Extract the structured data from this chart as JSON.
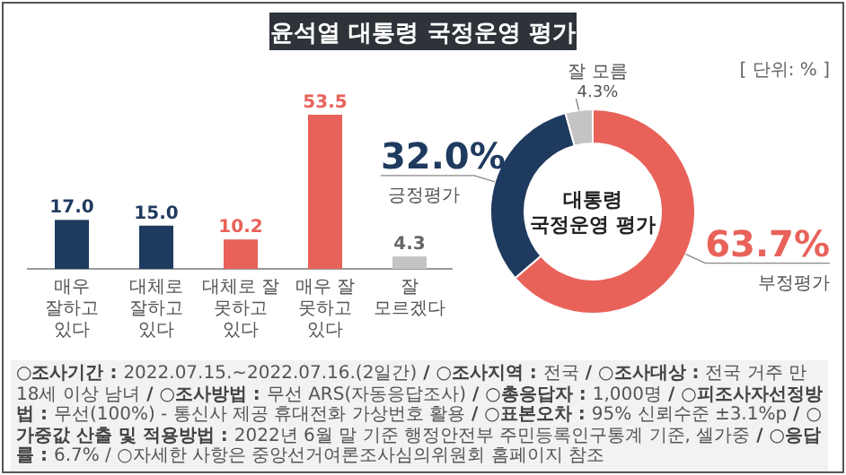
{
  "chart_data": [
    {
      "type": "bar",
      "title": "윤석열 대통령 국정운영 평가",
      "categories": [
        "매우 잘하고 있다",
        "대체로 잘하고 있다",
        "대체로 잘 못하고 있다",
        "매우 잘 못하고 있다",
        "잘 모르겠다"
      ],
      "values": [
        17.0,
        15.0,
        10.2,
        53.5,
        4.3
      ],
      "colors": [
        "#1f3a5f",
        "#1f3a5f",
        "#e8625a",
        "#e8625a",
        "#c4c4c4"
      ],
      "value_labels": [
        "17.0",
        "15.0",
        "10.2",
        "53.5",
        "4.3"
      ],
      "annotations": [
        "[ 단위: % ]",
        "○조사기간 : 2022.07.15.~2022.07.16.(2일간) / ○조사지역 : 전국 / ○조사대상 : 전국 거주 만 18세 이상 남녀 / ○조사방법 : 무선 ARS(자동응답조사) / ○총응답자 : 1,000명 / ○피조사자선정방법 : 무선(100%) - 통신사 제공 휴대전화 가상번호 활용 / ○표본오차 : 95% 신뢰수준 ±3.1%p / ○가중값 산출 및 적용방법 : 2022년 6월 말 기준 행정안전부 주민등록인구통계 기준, 셀가중 / ○응답률 : 6.7% / ○자세한 사항은 중앙선거여론조사심의위원회 홈페이지 참조"
      ]
    },
    {
      "type": "donut",
      "categories": [
        "부정평가",
        "긍정평가",
        "잘 모름"
      ],
      "values": [
        63.7,
        32.0,
        4.3
      ],
      "colors": [
        "#e8625a",
        "#1f3a5f",
        "#c4c4c4"
      ],
      "value_labels": [
        "63.7%",
        "32.0%",
        "4.3%"
      ],
      "annotations": [
        "대통령\n국정운영 평가"
      ]
    }
  ]
}
